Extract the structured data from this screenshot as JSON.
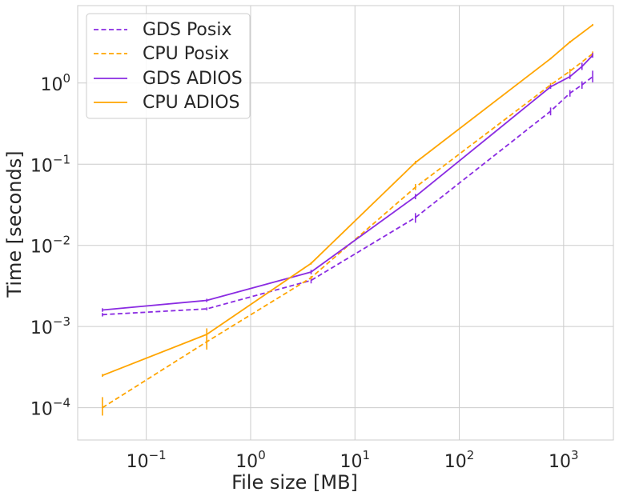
{
  "chart_data": {
    "type": "line",
    "xlabel": "File size [MB]",
    "ylabel": "Time [seconds]",
    "xscale": "log",
    "yscale": "log",
    "xlim": [
      0.022,
      3000
    ],
    "ylim": [
      4e-05,
      9
    ],
    "grid": true,
    "legend_position": "top-left",
    "x_ticks": [
      {
        "base": "10",
        "exp": "−1",
        "value": 0.1
      },
      {
        "base": "10",
        "exp": "0",
        "value": 1
      },
      {
        "base": "10",
        "exp": "1",
        "value": 10
      },
      {
        "base": "10",
        "exp": "2",
        "value": 100
      },
      {
        "base": "10",
        "exp": "3",
        "value": 1000
      }
    ],
    "y_ticks": [
      {
        "base": "10",
        "exp": "−4",
        "value": 0.0001
      },
      {
        "base": "10",
        "exp": "−3",
        "value": 0.001
      },
      {
        "base": "10",
        "exp": "−2",
        "value": 0.01
      },
      {
        "base": "10",
        "exp": "−1",
        "value": 0.1
      },
      {
        "base": "10",
        "exp": "0",
        "value": 1
      }
    ],
    "series": [
      {
        "name": "GDS Posix",
        "color": "#8A2BE2",
        "dash": true,
        "x": [
          0.038,
          0.38,
          3.8,
          38,
          750,
          1150,
          1500,
          1900
        ],
        "y": [
          0.0014,
          0.00165,
          0.0037,
          0.022,
          0.45,
          0.75,
          0.95,
          1.2
        ],
        "err_low": [
          0.00133,
          0.00158,
          0.0034,
          0.019,
          0.4,
          0.68,
          0.85,
          1.02
        ],
        "err_high": [
          0.00147,
          0.00172,
          0.0041,
          0.025,
          0.5,
          0.82,
          1.05,
          1.42
        ]
      },
      {
        "name": "CPU Posix",
        "color": "#FFA500",
        "dash": true,
        "x": [
          0.038,
          0.38,
          3.8,
          38,
          750,
          1150,
          1900
        ],
        "y": [
          0.0001,
          0.00065,
          0.004,
          0.052,
          0.95,
          1.4,
          2.3
        ],
        "err_low": [
          8e-05,
          0.00055,
          0.0038,
          0.048,
          0.9,
          1.3,
          2.15
        ],
        "err_high": [
          0.000135,
          0.00075,
          0.0042,
          0.057,
          1.0,
          1.5,
          2.45
        ]
      },
      {
        "name": "GDS ADIOS",
        "color": "#8A2BE2",
        "dash": false,
        "x": [
          0.038,
          0.38,
          3.8,
          38,
          750,
          1150,
          1500,
          1900
        ],
        "y": [
          0.0016,
          0.0021,
          0.0047,
          0.04,
          0.9,
          1.2,
          1.6,
          2.2
        ],
        "err_low": [
          0.00152,
          0.002,
          0.0044,
          0.037,
          0.85,
          1.12,
          1.45,
          2.05
        ],
        "err_high": [
          0.00168,
          0.0022,
          0.005,
          0.043,
          0.95,
          1.28,
          1.78,
          2.35
        ]
      },
      {
        "name": "CPU ADIOS",
        "color": "#FFA500",
        "dash": false,
        "x": [
          0.038,
          0.38,
          3.8,
          38,
          750,
          1150,
          1900
        ],
        "y": [
          0.00025,
          0.0008,
          0.006,
          0.105,
          2.0,
          3.2,
          5.2
        ],
        "err_low": [
          0.00024,
          0.00052,
          0.0058,
          0.1,
          1.95,
          3.1,
          5.05
        ],
        "err_high": [
          0.00026,
          0.00095,
          0.0062,
          0.11,
          2.05,
          3.3,
          5.35
        ]
      }
    ]
  }
}
